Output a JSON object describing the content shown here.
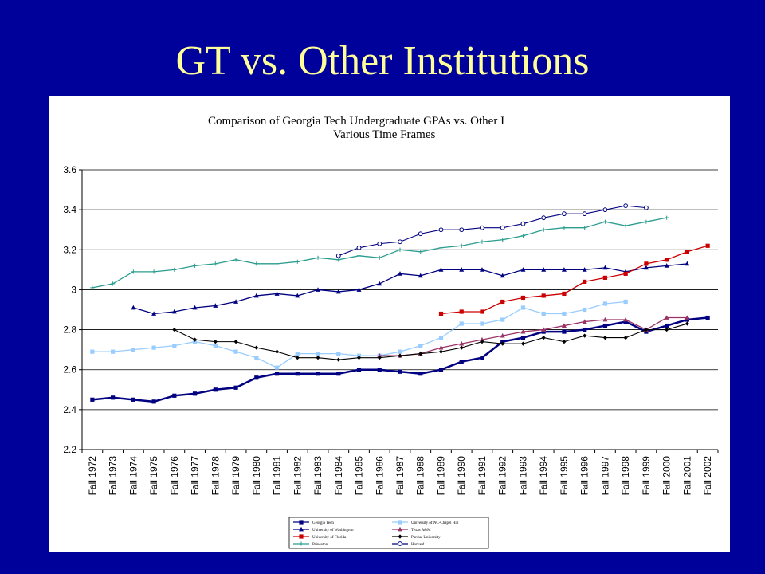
{
  "slide": {
    "title": "GT vs. Other Institutions"
  },
  "colors": {
    "background": "#00009a",
    "title": "#ffff99",
    "panel": "#ffffff"
  },
  "chart_data": {
    "type": "line",
    "title": "Comparison of Georgia Tech Undergraduate GPAs vs. Other I",
    "subtitle": "Various Time Frames",
    "xlabel": "",
    "ylabel": "",
    "ylim": [
      2.2,
      3.6
    ],
    "yticks": [
      "2.2",
      "2.4",
      "2.6",
      "2.8",
      "3",
      "3.2",
      "3.4",
      "3.6"
    ],
    "ytick_values": [
      2.2,
      2.4,
      2.6,
      2.8,
      3.0,
      3.2,
      3.4,
      3.6
    ],
    "grid": "horizontal",
    "legend_position": "bottom",
    "categories": [
      "Fall 1972",
      "Fall 1973",
      "Fall 1974",
      "Fall 1975",
      "Fall 1976",
      "Fall 1977",
      "Fall 1978",
      "Fall 1979",
      "Fall 1980",
      "Fall 1981",
      "Fall 1982",
      "Fall 1983",
      "Fall 1984",
      "Fall 1985",
      "Fall 1986",
      "Fall 1987",
      "Fall 1988",
      "Fall 1989",
      "Fall 1990",
      "Fall 1991",
      "Fall 1992",
      "Fall 1993",
      "Fall 1994",
      "Fall 1995",
      "Fall 1996",
      "Fall 1997",
      "Fall 1998",
      "Fall 1999",
      "Fall 2000",
      "Fall 2001",
      "Fall 2002"
    ],
    "series": [
      {
        "name": "Georgia Tech",
        "color": "#000080",
        "marker": "square",
        "width": 2.5,
        "values": [
          2.45,
          2.46,
          2.45,
          2.44,
          2.47,
          2.48,
          2.5,
          2.51,
          2.56,
          2.58,
          2.58,
          2.58,
          2.58,
          2.6,
          2.6,
          2.59,
          2.58,
          2.6,
          2.64,
          2.66,
          2.74,
          2.76,
          2.79,
          2.79,
          2.8,
          2.82,
          2.84,
          2.79,
          2.82,
          2.85,
          2.86
        ]
      },
      {
        "name": "University of NC-Chapel Hill",
        "color": "#99ccff",
        "marker": "square",
        "width": 1.3,
        "values": [
          2.69,
          2.69,
          2.7,
          2.71,
          2.72,
          2.74,
          2.72,
          2.69,
          2.66,
          2.61,
          2.68,
          2.68,
          2.68,
          2.67,
          2.67,
          2.69,
          2.72,
          2.76,
          2.83,
          2.83,
          2.85,
          2.91,
          2.88,
          2.88,
          2.9,
          2.93,
          2.94,
          null,
          null,
          null,
          null
        ]
      },
      {
        "name": "University of Washington",
        "color": "#000080",
        "marker": "triangle",
        "width": 1.3,
        "values": [
          null,
          null,
          2.91,
          2.88,
          2.89,
          2.91,
          2.92,
          2.94,
          2.97,
          2.98,
          2.97,
          3.0,
          2.99,
          3.0,
          3.03,
          3.08,
          3.07,
          3.1,
          3.1,
          3.1,
          3.07,
          3.1,
          3.1,
          3.1,
          3.1,
          3.11,
          3.09,
          3.11,
          3.12,
          3.13,
          null
        ]
      },
      {
        "name": "Texas A&M",
        "color": "#993366",
        "marker": "triangle",
        "width": 1.3,
        "values": [
          null,
          null,
          null,
          null,
          null,
          null,
          null,
          null,
          null,
          null,
          null,
          null,
          null,
          null,
          2.67,
          2.67,
          2.68,
          2.71,
          2.73,
          2.75,
          2.77,
          2.79,
          2.8,
          2.82,
          2.84,
          2.85,
          2.85,
          2.8,
          2.86,
          2.86,
          null
        ]
      },
      {
        "name": "University of Florida",
        "color": "#cc0000",
        "marker": "square",
        "width": 1.3,
        "values": [
          null,
          null,
          null,
          null,
          null,
          null,
          null,
          null,
          null,
          null,
          null,
          null,
          null,
          null,
          null,
          null,
          null,
          2.88,
          2.89,
          2.89,
          2.94,
          2.96,
          2.97,
          2.98,
          3.04,
          3.06,
          3.08,
          3.13,
          3.15,
          3.19,
          3.22
        ]
      },
      {
        "name": "Purdue University",
        "color": "#000000",
        "marker": "diamond",
        "width": 1.1,
        "values": [
          null,
          null,
          null,
          null,
          2.8,
          2.75,
          2.74,
          2.74,
          2.71,
          2.69,
          2.66,
          2.66,
          2.65,
          2.66,
          2.66,
          2.67,
          2.68,
          2.69,
          2.71,
          2.74,
          2.73,
          2.73,
          2.76,
          2.74,
          2.77,
          2.76,
          2.76,
          2.8,
          2.8,
          2.83,
          null
        ]
      },
      {
        "name": "Princeton",
        "color": "#2a9d8f",
        "marker": "plus",
        "width": 1.3,
        "values": [
          3.01,
          3.03,
          3.09,
          3.09,
          3.1,
          3.12,
          3.13,
          3.15,
          3.13,
          3.13,
          3.14,
          3.16,
          3.15,
          3.17,
          3.16,
          3.2,
          3.19,
          3.21,
          3.22,
          3.24,
          3.25,
          3.27,
          3.3,
          3.31,
          3.31,
          3.34,
          3.32,
          3.34,
          3.36,
          null,
          null
        ]
      },
      {
        "name": "Harvard",
        "color": "#000080",
        "marker": "circle",
        "width": 1.1,
        "values": [
          null,
          null,
          null,
          null,
          null,
          null,
          null,
          null,
          null,
          null,
          null,
          null,
          3.17,
          3.21,
          3.23,
          3.24,
          3.28,
          3.3,
          3.3,
          3.31,
          3.31,
          3.33,
          3.36,
          3.38,
          3.38,
          3.4,
          3.42,
          3.41,
          null,
          null,
          null
        ]
      }
    ]
  }
}
